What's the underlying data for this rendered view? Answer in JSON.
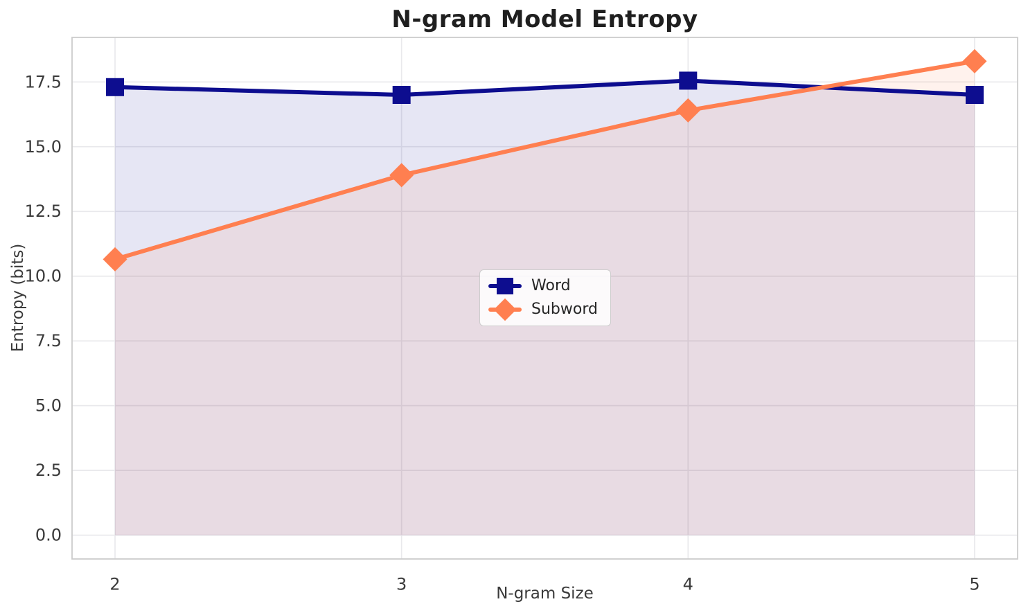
{
  "figure": {
    "title": "N-gram Model Entropy",
    "xlabel": "N-gram Size",
    "ylabel": "Entropy (bits)"
  },
  "legend": {
    "position": "center",
    "items": [
      {
        "label": "Word"
      },
      {
        "label": "Subword"
      }
    ]
  },
  "colors": {
    "word": "#0d0d8f",
    "subword": "#ff7f50",
    "grid": "#e9e9ec",
    "spine": "#cccccc",
    "tick_text": "#3a3a3a",
    "title_text": "#1f1f1f"
  },
  "chart_data": {
    "type": "line",
    "x": [
      2,
      3,
      4,
      5
    ],
    "series": [
      {
        "name": "Word",
        "color": "#0d0d8f",
        "marker": "square",
        "values": [
          17.3,
          17.0,
          17.55,
          17.0
        ],
        "fill_to_zero": true,
        "fill_alpha": 0.1
      },
      {
        "name": "Subword",
        "color": "#ff7f50",
        "marker": "diamond",
        "values": [
          10.65,
          13.9,
          16.4,
          18.3
        ],
        "fill_to_zero": true,
        "fill_alpha": 0.1
      }
    ],
    "title": "N-gram Model Entropy",
    "xlabel": "N-gram Size",
    "ylabel": "Entropy (bits)",
    "xticks": [
      2,
      3,
      4,
      5
    ],
    "xtick_labels": [
      "2",
      "3",
      "4",
      "5"
    ],
    "yticks": [
      0,
      2.5,
      5,
      7.5,
      10,
      12.5,
      15,
      17.5
    ],
    "ytick_labels": [
      "0.0",
      "2.5",
      "5.0",
      "7.5",
      "10.0",
      "12.5",
      "15.0",
      "17.5"
    ],
    "xlim": [
      1.85,
      5.15
    ],
    "ylim": [
      -0.92,
      19.22
    ],
    "grid": true,
    "legend_position": "center"
  }
}
